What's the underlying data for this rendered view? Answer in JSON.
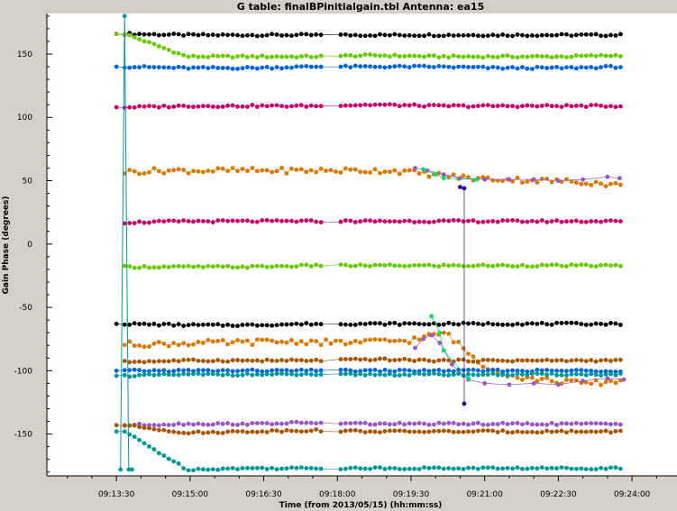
{
  "chart_data": {
    "type": "scatter",
    "title": "G table: finalBPinitialgain.tbl   Antenna: ea15",
    "xlabel": "Time (from 2013/05/15) (hh:mm:ss)",
    "ylabel": "Gain Phase (degrees)",
    "xlim": [
      "09:12:05",
      "09:24:55"
    ],
    "ylim": [
      -183,
      182
    ],
    "x_ticks": [
      "09:13:30",
      "09:15:00",
      "09:16:30",
      "09:18:00",
      "09:19:30",
      "09:21:00",
      "09:22:30",
      "09:24:00"
    ],
    "y_ticks": [
      150,
      100,
      50,
      0,
      -50,
      -100,
      -150
    ],
    "grid": false,
    "time_span": {
      "start": "09:13:40",
      "end": "09:23:50"
    },
    "series": [
      {
        "color": "#000000",
        "start": "09:13:30",
        "values": [
          166,
          165,
          165,
          165,
          165,
          165,
          165,
          165,
          165
        ],
        "gap": true
      },
      {
        "color": "#66cc00",
        "start": "09:13:30",
        "values": [
          166,
          148,
          148,
          148,
          149,
          148,
          148,
          148,
          149
        ],
        "gap": true
      },
      {
        "color": "#0066dd",
        "start": "09:13:30",
        "values": [
          140,
          139,
          139,
          140,
          140,
          140,
          139,
          139,
          140
        ],
        "gap": true
      },
      {
        "color": "#cc0066",
        "start": "09:13:30",
        "values": [
          108,
          109,
          109,
          109,
          110,
          109,
          109,
          109,
          109
        ],
        "gap": true
      },
      {
        "color": "#dd7700",
        "values": [
          57,
          58,
          58,
          58,
          58,
          58,
          58,
          58,
          55,
          52,
          51,
          50,
          49,
          46
        ],
        "noisy": true
      },
      {
        "color": "#cc0066",
        "values": [
          17,
          18,
          18,
          18,
          18,
          18,
          18,
          18,
          18
        ],
        "gap": true
      },
      {
        "color": "#66cc00",
        "values": [
          -18,
          -18,
          -18,
          -17,
          -17,
          -17,
          -17,
          -17,
          -17
        ],
        "gap": true
      },
      {
        "color": "#000000",
        "start": "09:13:30",
        "values": [
          -63,
          -64,
          -64,
          -63,
          -63,
          -63,
          -63,
          -63,
          -63
        ],
        "gap": true
      },
      {
        "color": "#dd7700",
        "values": [
          -79,
          -79,
          -78,
          -78,
          -77,
          -77,
          -78,
          -77,
          -76,
          -70,
          -95,
          -105,
          -108,
          -110,
          -108
        ],
        "noisy": true
      },
      {
        "color": "#aa5500",
        "values": [
          -93,
          -92,
          -92,
          -92,
          -91,
          -92,
          -92,
          -92,
          -92
        ],
        "gap": true
      },
      {
        "color": "#0066dd",
        "start": "09:13:30",
        "values": [
          -100,
          -100,
          -100,
          -100,
          -100,
          -100,
          -100,
          -100,
          -100
        ],
        "gap": true
      },
      {
        "color": "#009999",
        "start": "09:13:30",
        "values": [
          -104,
          -103,
          -103,
          -103,
          -103,
          -103,
          -103,
          -103,
          -103
        ],
        "gap": true
      },
      {
        "color": "#9955cc",
        "values": [
          -143,
          -142,
          -142,
          -141,
          -142,
          -142,
          -142,
          -142,
          -142
        ],
        "gap": true
      },
      {
        "color": "#aa5500",
        "start": "09:13:30",
        "values": [
          -143,
          -149,
          -148,
          -147,
          -148,
          -148,
          -148,
          -148,
          -148
        ],
        "gap": true
      },
      {
        "color": "#009999",
        "start": "09:13:30",
        "values": [
          -148,
          -178,
          -177,
          -177,
          -177,
          -177,
          -177,
          -177,
          -177
        ],
        "gap": true
      }
    ],
    "spike": {
      "color": "#009999",
      "points": [
        [
          "09:13:35",
          -178
        ],
        [
          "09:13:40",
          180
        ],
        [
          "09:13:45",
          -178
        ],
        [
          "09:13:49",
          -178
        ]
      ]
    },
    "late_points": [
      {
        "color": "#9955cc",
        "points": [
          [
            "09:19:35",
            -82
          ],
          [
            "09:19:45",
            -75
          ],
          [
            "09:19:55",
            -72
          ],
          [
            "09:20:05",
            -78
          ],
          [
            "09:20:20",
            -95
          ],
          [
            "09:20:40",
            -107
          ],
          [
            "09:21:00",
            -110
          ],
          [
            "09:21:30",
            -111
          ],
          [
            "09:22:00",
            -110
          ],
          [
            "09:22:30",
            -111
          ],
          [
            "09:23:00",
            -108
          ],
          [
            "09:23:30",
            -106
          ],
          [
            "09:23:50",
            -107
          ]
        ]
      },
      {
        "color": "#00dd66",
        "points": [
          [
            "09:19:55",
            -57
          ],
          [
            "09:20:05",
            -70
          ],
          [
            "09:20:10",
            -84
          ],
          [
            "09:20:40",
            -106
          ]
        ]
      },
      {
        "color": "#9955cc",
        "points": [
          [
            "09:19:35",
            60
          ],
          [
            "09:19:50",
            58
          ],
          [
            "09:20:10",
            55
          ],
          [
            "09:20:30",
            52
          ],
          [
            "09:21:00",
            51
          ],
          [
            "09:21:30",
            51
          ],
          [
            "09:22:00",
            51
          ],
          [
            "09:22:30",
            50
          ],
          [
            "09:23:00",
            51
          ],
          [
            "09:23:30",
            53
          ],
          [
            "09:23:45",
            52
          ]
        ]
      },
      {
        "color": "#00dd66",
        "points": [
          [
            "09:19:45",
            59
          ],
          [
            "09:20:00",
            55
          ],
          [
            "09:20:10",
            52
          ],
          [
            "09:20:50",
            51
          ]
        ]
      },
      {
        "color": "#330099",
        "points": [
          [
            "09:20:30",
            45
          ],
          [
            "09:20:35",
            44
          ],
          [
            "09:20:35",
            -126
          ]
        ]
      }
    ]
  }
}
